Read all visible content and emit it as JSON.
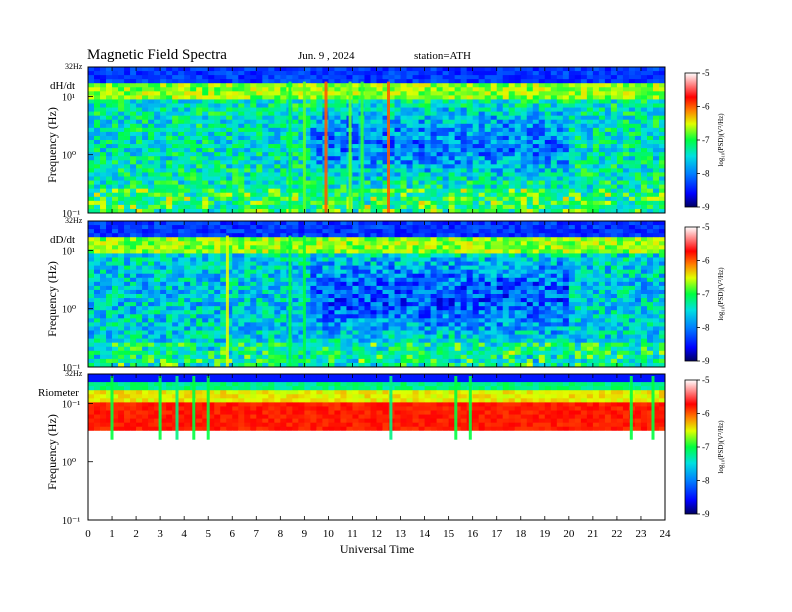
{
  "header": {
    "title": "Magnetic  Field  Spectra",
    "date": "Jun.  9   , 2024",
    "station": "station=ATH"
  },
  "chart_data": {
    "type": "heatmap",
    "xlabel": "Universal  Time",
    "xlim": [
      0,
      24
    ],
    "x_ticks": [
      "0",
      "1",
      "2",
      "3",
      "4",
      "5",
      "6",
      "7",
      "8",
      "9",
      "10",
      "11",
      "12",
      "13",
      "14",
      "15",
      "16",
      "17",
      "18",
      "19",
      "20",
      "21",
      "22",
      "23",
      "24"
    ],
    "ylabel": "Frequency  (Hz)",
    "y_scale": "log",
    "colorbar": {
      "label": "log10(PSD)(V^2/Hz)",
      "label_display": "log₁₀(PSD)(V²/Hz)",
      "range": [
        -9,
        -5
      ],
      "ticks": [
        "-5",
        "-6",
        "-7",
        "-8",
        "-9"
      ],
      "colors": [
        "#000060",
        "#0000ff",
        "#0080ff",
        "#00e0e0",
        "#00ff40",
        "#e0ff00",
        "#ff8000",
        "#ff0000",
        "#ffffff"
      ]
    },
    "panels": [
      {
        "name": "dH/dt",
        "top_label": "32Hz",
        "y_tick_labels": [
          "10¹",
          "10⁰",
          "10⁻¹"
        ],
        "background_level": -7.3,
        "events": [
          {
            "t": 8.4,
            "level": -7.0
          },
          {
            "t": 9.0,
            "level": -6.8
          },
          {
            "t": 9.9,
            "level": -6.0
          },
          {
            "t": 10.9,
            "level": -6.8
          },
          {
            "t": 11.4,
            "level": -6.9
          },
          {
            "t": 12.5,
            "level": -6.0
          }
        ]
      },
      {
        "name": "dD/dt",
        "top_label": "32Hz",
        "y_tick_labels": [
          "10¹",
          "10⁰",
          "10⁻¹"
        ],
        "background_level": -7.5,
        "events": [
          {
            "t": 5.8,
            "level": -6.5
          },
          {
            "t": 8.4,
            "level": -7.0
          },
          {
            "t": 9.0,
            "level": -7.0
          }
        ]
      },
      {
        "name": "Riometer",
        "top_label": "32Hz",
        "y_tick_labels": [
          "10⁻¹",
          "10⁰",
          "10⁻¹"
        ],
        "background_level": -5.5,
        "events": [
          {
            "t": 1.0,
            "level": -7.0
          },
          {
            "t": 3.0,
            "level": -7.0
          },
          {
            "t": 3.7,
            "level": -7.2
          },
          {
            "t": 4.4,
            "level": -7.0
          },
          {
            "t": 5.0,
            "level": -7.0
          },
          {
            "t": 12.6,
            "level": -7.2
          },
          {
            "t": 15.3,
            "level": -7.0
          },
          {
            "t": 15.9,
            "level": -7.0
          },
          {
            "t": 22.6,
            "level": -7.0
          },
          {
            "t": 23.5,
            "level": -7.0
          }
        ]
      }
    ]
  }
}
